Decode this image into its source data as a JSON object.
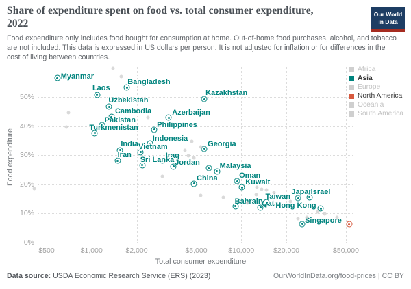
{
  "header": {
    "title_line1": "Share of expenditure spent on food vs. total consumer expenditure,",
    "title_line2": "2022",
    "subtitle": "Food expenditure only includes food bought for consumption at home. Out-of-home food purchases, alcohol, and tobacco are not included. This data is expressed in US dollars per person. It is not adjusted for inflation or for differences in the cost of living between countries."
  },
  "logo": {
    "line1": "Our World",
    "line2": "in Data",
    "bg_color": "#1d3d63",
    "accent_color": "#a52c21"
  },
  "legend": {
    "items": [
      {
        "label": "Africa",
        "color": "#cfcfcf",
        "active": false,
        "bold": false
      },
      {
        "label": "Asia",
        "color": "#00847e",
        "active": true,
        "bold": true
      },
      {
        "label": "Europe",
        "color": "#cfcfcf",
        "active": false,
        "bold": false
      },
      {
        "label": "North America",
        "color": "#d7593e",
        "active": true,
        "bold": false
      },
      {
        "label": "Oceania",
        "color": "#cfcfcf",
        "active": false,
        "bold": false
      },
      {
        "label": "South America",
        "color": "#cfcfcf",
        "active": false,
        "bold": false
      }
    ]
  },
  "footer": {
    "source_label": "Data source:",
    "source_text": " USDA Economic Research Service (ERS) (2023)",
    "credit": "OurWorldInData.org/food-prices | CC BY"
  },
  "chart_data": {
    "type": "scatter",
    "title": "Share of expenditure spent on food vs. total consumer expenditure, 2022",
    "xlabel": "Total consumer expenditure",
    "ylabel": "Food expenditure",
    "x_scale": "log",
    "x_range_usd": [
      420,
      60000
    ],
    "y_range_pct": [
      0,
      60
    ],
    "grid": true,
    "legend_position": "right",
    "x_ticks": [
      {
        "value": 500,
        "label": "$500"
      },
      {
        "value": 1000,
        "label": "$1,000"
      },
      {
        "value": 2000,
        "label": "$2,000"
      },
      {
        "value": 5000,
        "label": "$5,000"
      },
      {
        "value": 10000,
        "label": "$10,000"
      },
      {
        "value": 20000,
        "label": "$20,000"
      },
      {
        "value": 50000,
        "label": "$50,000"
      }
    ],
    "y_ticks": [
      {
        "value": 0,
        "label": "0%"
      },
      {
        "value": 10,
        "label": "10%"
      },
      {
        "value": 20,
        "label": "20%"
      },
      {
        "value": 30,
        "label": "30%"
      },
      {
        "value": 40,
        "label": "40%"
      },
      {
        "value": 50,
        "label": "50%"
      }
    ],
    "series": [
      {
        "name": "Asia",
        "color": "#00847e",
        "marker": "ring",
        "points": [
          {
            "country": "Myanmar",
            "x": 590,
            "y": 56.5,
            "dx": 5,
            "dy": -8
          },
          {
            "country": "Bangladesh",
            "x": 1720,
            "y": 53.2,
            "dx": 1,
            "dy": -14
          },
          {
            "country": "Laos",
            "x": 1090,
            "y": 50.8,
            "dx": -7,
            "dy": -16
          },
          {
            "country": "Kazakhstan",
            "x": 5650,
            "y": 49.2,
            "dx": 2,
            "dy": -15
          },
          {
            "country": "Uzbekistan",
            "x": 1310,
            "y": 46.6,
            "dx": -1,
            "dy": -15
          },
          {
            "country": "Cambodia",
            "x": 1360,
            "y": 43.1,
            "dx": 5,
            "dy": -14
          },
          {
            "country": "Azerbaijan",
            "x": 3270,
            "y": 42.9,
            "dx": 5,
            "dy": -13
          },
          {
            "country": "Pakistan",
            "x": 1170,
            "y": 40.3,
            "dx": 4,
            "dy": -13
          },
          {
            "country": "Philippines",
            "x": 2620,
            "y": 38.8,
            "dx": 4,
            "dy": -13
          },
          {
            "country": "Turkmenistan",
            "x": 1050,
            "y": 37.6,
            "dx": -8,
            "dy": -14
          },
          {
            "country": "Indonesia",
            "x": 2450,
            "y": 34.0,
            "dx": 4,
            "dy": -13
          },
          {
            "country": "Georgia",
            "x": 5650,
            "y": 32.2,
            "dx": 5,
            "dy": -13
          },
          {
            "country": "India",
            "x": 1550,
            "y": 31.7,
            "dx": 1,
            "dy": -15
          },
          {
            "country": "Vietnam",
            "x": 2120,
            "y": 31.0,
            "dx": -3,
            "dy": -14
          },
          {
            "country": "Iran",
            "x": 1490,
            "y": 28.1,
            "dx": 0,
            "dy": -14
          },
          {
            "country": "Iraq",
            "x": 2960,
            "y": 28.2,
            "dx": 5,
            "dy": -13
          },
          {
            "country": "Sri Lanka",
            "x": 2180,
            "y": 26.6,
            "dx": -3,
            "dy": -14
          },
          {
            "country": "Jordan",
            "x": 3520,
            "y": 26.1,
            "dx": 2,
            "dy": -12
          },
          {
            "country": "Malaysia",
            "x": 6870,
            "y": 24.5,
            "dx": 4,
            "dy": -14
          },
          {
            "country": "China",
            "x": 4820,
            "y": 20.2,
            "dx": 4,
            "dy": -14
          },
          {
            "country": "Oman",
            "x": 9370,
            "y": 21.1,
            "dx": 3,
            "dy": -14
          },
          {
            "country": "Kuwait",
            "x": 10100,
            "y": 18.9,
            "dx": 5,
            "dy": -13
          },
          {
            "country": "Bahrain",
            "x": 9130,
            "y": 12.5,
            "dx": -1,
            "dy": -13
          },
          {
            "country": "Qatar",
            "x": 13400,
            "y": 12.0,
            "dx": 2,
            "dy": -12
          },
          {
            "country": "Taiwan",
            "x": 14800,
            "y": 13.8,
            "dx": -2,
            "dy": -14
          },
          {
            "country": "Japan",
            "x": 24000,
            "y": 15.2,
            "dx": -10,
            "dy": -15
          },
          {
            "country": "Israel",
            "x": 28500,
            "y": 15.5,
            "dx": 2,
            "dy": -14
          },
          {
            "country": "Hong Kong",
            "x": 34000,
            "y": 11.7,
            "dx": -66,
            "dy": -10
          },
          {
            "country": "Singapore",
            "x": 25500,
            "y": 6.4,
            "dx": 4,
            "dy": -11
          },
          {
            "country": "",
            "x": 6050,
            "y": 25.5
          }
        ]
      },
      {
        "name": "North America",
        "color": "#d7593e",
        "marker": "ring",
        "points": [
          {
            "country": "",
            "x": 52500,
            "y": 6.3
          }
        ]
      },
      {
        "name": "Other regions (not highlighted)",
        "color": "#cfcfcf",
        "marker": "dot",
        "points": [
          {
            "x": 1390,
            "y": 59.9
          },
          {
            "x": 1580,
            "y": 57.0
          },
          {
            "x": 700,
            "y": 44.6
          },
          {
            "x": 680,
            "y": 39.7
          },
          {
            "x": 2370,
            "y": 43.0
          },
          {
            "x": 4670,
            "y": 34.7
          },
          {
            "x": 5360,
            "y": 32.9
          },
          {
            "x": 4190,
            "y": 31.7
          },
          {
            "x": 4440,
            "y": 29.8
          },
          {
            "x": 4820,
            "y": 29.1
          },
          {
            "x": 2970,
            "y": 22.8
          },
          {
            "x": 5360,
            "y": 16.2
          },
          {
            "x": 12700,
            "y": 19.0
          },
          {
            "x": 13700,
            "y": 18.3
          },
          {
            "x": 14800,
            "y": 18.1
          },
          {
            "x": 16600,
            "y": 17.1
          },
          {
            "x": 12600,
            "y": 16.4
          },
          {
            "x": 21300,
            "y": 14.1
          },
          {
            "x": 24000,
            "y": 8.2
          },
          {
            "x": 27400,
            "y": 8.7
          },
          {
            "x": 32500,
            "y": 10.6
          },
          {
            "x": 36200,
            "y": 9.9
          },
          {
            "x": 43400,
            "y": 8.7
          },
          {
            "x": 415,
            "y": 18.5
          },
          {
            "x": 7600,
            "y": 15.5
          },
          {
            "x": 11000,
            "y": 13.5
          }
        ]
      }
    ]
  }
}
